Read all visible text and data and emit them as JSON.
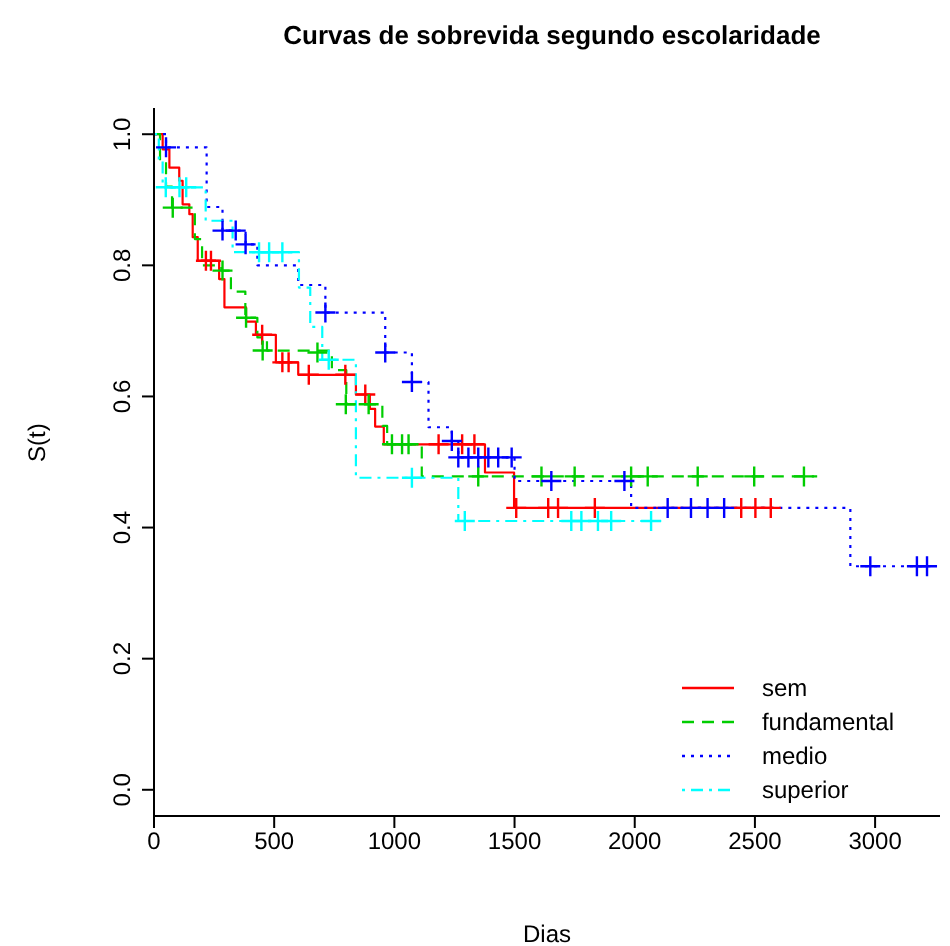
{
  "chart_data": {
    "type": "step",
    "title": "Curvas de sobrevida segundo escolaridade",
    "xlabel": "Dias",
    "ylabel": "S(t)",
    "xlim": [
      0,
      3270
    ],
    "ylim": [
      -0.04,
      1.04
    ],
    "xticks": [
      0,
      500,
      1000,
      1500,
      2000,
      2500,
      3000
    ],
    "yticks": [
      {
        "value": 0,
        "label": "0.0"
      },
      0.2,
      0.4,
      0.6,
      0.8,
      {
        "value": 1,
        "label": "1.0"
      }
    ],
    "grid": false,
    "legend": "bottom right",
    "series": [
      {
        "name": "sem",
        "color": "#ff0000",
        "line_style": "solid",
        "x": [
          0,
          36,
          64,
          105,
          119,
          147,
          161,
          182,
          271,
          293,
          383,
          424,
          507,
          600,
          840,
          898,
          920,
          956,
          1377,
          1498,
          2577
        ],
        "values": [
          1.0,
          0.977,
          0.949,
          0.929,
          0.893,
          0.878,
          0.843,
          0.807,
          0.779,
          0.736,
          0.714,
          0.694,
          0.652,
          0.633,
          0.603,
          0.581,
          0.554,
          0.527,
          0.484,
          0.43,
          0.43
        ]
      },
      {
        "name": "fundamental",
        "color": "#00cd00",
        "line_style": "dashed",
        "x": [
          0,
          25,
          50,
          75,
          170,
          200,
          280,
          320,
          380,
          430,
          470,
          740,
          800,
          950,
          970,
          1114,
          2759
        ],
        "values": [
          1.0,
          0.96,
          0.92,
          0.888,
          0.84,
          0.8,
          0.792,
          0.76,
          0.72,
          0.69,
          0.67,
          0.64,
          0.588,
          0.555,
          0.527,
          0.478,
          0.478
        ]
      },
      {
        "name": "medio",
        "color": "#0000ff",
        "line_style": "dotted",
        "x": [
          0,
          50,
          219,
          285,
          381,
          430,
          600,
          713,
          962,
          1073,
          1142,
          1239,
          1266,
          1500,
          1985,
          2897,
          3230
        ],
        "values": [
          1.0,
          0.98,
          0.889,
          0.853,
          0.832,
          0.8,
          0.77,
          0.728,
          0.667,
          0.622,
          0.553,
          0.532,
          0.507,
          0.471,
          0.43,
          0.341,
          0.341
        ]
      },
      {
        "name": "superior",
        "color": "#00ffff",
        "line_style": "dashdot",
        "x": [
          0,
          20,
          36,
          215,
          327,
          603,
          650,
          700,
          840,
          1266,
          2110
        ],
        "values": [
          1.0,
          0.96,
          0.919,
          0.868,
          0.82,
          0.766,
          0.706,
          0.656,
          0.476,
          0.41,
          0.41
        ]
      },
      {
        "type": "scatter",
        "color": "#ff0000",
        "marker": "cross",
        "x": [
          216,
          237,
          450,
          534,
          560,
          644,
          796,
          879,
          1184,
          1282,
          1333,
          1507,
          1640,
          1681,
          1834,
          2443,
          2502,
          2566
        ],
        "values": [
          0.807,
          0.807,
          0.694,
          0.652,
          0.652,
          0.633,
          0.633,
          0.603,
          0.527,
          0.527,
          0.527,
          0.43,
          0.43,
          0.43,
          0.43,
          0.43,
          0.43,
          0.43
        ]
      },
      {
        "type": "scatter",
        "color": "#00cd00",
        "marker": "cross",
        "x": [
          78,
          285,
          383,
          452,
          680,
          798,
          893,
          990,
          1032,
          1059,
          1349,
          1612,
          1750,
          1985,
          2054,
          2262,
          2497,
          2704
        ],
        "values": [
          0.888,
          0.792,
          0.72,
          0.67,
          0.667,
          0.588,
          0.588,
          0.527,
          0.527,
          0.527,
          0.478,
          0.478,
          0.478,
          0.478,
          0.478,
          0.478,
          0.478,
          0.478
        ]
      },
      {
        "type": "scatter",
        "color": "#0000ff",
        "marker": "cross",
        "x": [
          50,
          285,
          340,
          381,
          713,
          962,
          1073,
          1239,
          1266,
          1308,
          1349,
          1391,
          1432,
          1488,
          1653,
          1957,
          2137,
          2234,
          2303,
          2372,
          2980,
          3174,
          3216
        ],
        "values": [
          0.98,
          0.853,
          0.853,
          0.832,
          0.728,
          0.667,
          0.622,
          0.532,
          0.507,
          0.507,
          0.507,
          0.507,
          0.507,
          0.507,
          0.471,
          0.471,
          0.43,
          0.43,
          0.43,
          0.43,
          0.341,
          0.341,
          0.341
        ]
      },
      {
        "type": "scatter",
        "color": "#00ffff",
        "marker": "cross",
        "x": [
          49,
          106,
          134,
          437,
          479,
          534,
          727,
          1073,
          1293,
          1736,
          1778,
          1847,
          1902,
          2068
        ],
        "values": [
          0.919,
          0.919,
          0.919,
          0.82,
          0.82,
          0.82,
          0.656,
          0.476,
          0.41,
          0.41,
          0.41,
          0.41,
          0.41,
          0.41
        ]
      }
    ]
  }
}
